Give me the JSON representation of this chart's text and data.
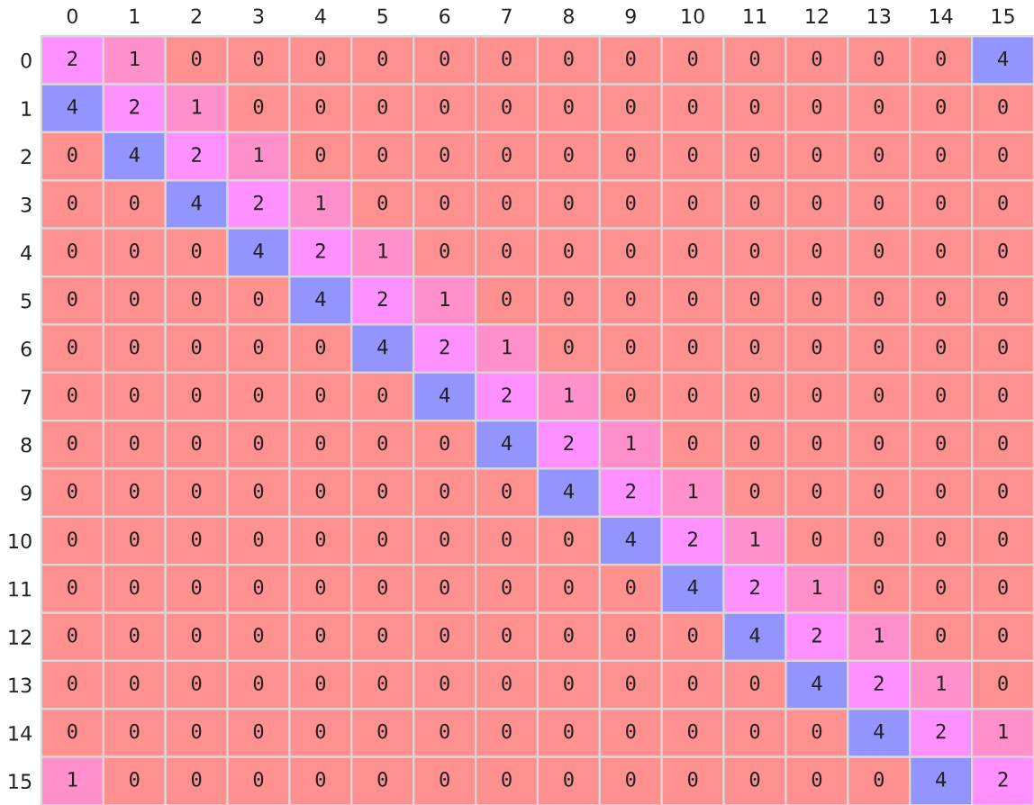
{
  "chart_data": {
    "type": "heatmap",
    "categories": [
      "0",
      "1",
      "2",
      "3",
      "4",
      "5",
      "6",
      "7",
      "8",
      "9",
      "10",
      "11",
      "12",
      "13",
      "14",
      "15"
    ],
    "y_categories": [
      "0",
      "1",
      "2",
      "3",
      "4",
      "5",
      "6",
      "7",
      "8",
      "9",
      "10",
      "11",
      "12",
      "13",
      "14",
      "15"
    ],
    "cells": [
      [
        2,
        1,
        0,
        0,
        0,
        0,
        0,
        0,
        0,
        0,
        0,
        0,
        0,
        0,
        0,
        4
      ],
      [
        4,
        2,
        1,
        0,
        0,
        0,
        0,
        0,
        0,
        0,
        0,
        0,
        0,
        0,
        0,
        0
      ],
      [
        0,
        4,
        2,
        1,
        0,
        0,
        0,
        0,
        0,
        0,
        0,
        0,
        0,
        0,
        0,
        0
      ],
      [
        0,
        0,
        4,
        2,
        1,
        0,
        0,
        0,
        0,
        0,
        0,
        0,
        0,
        0,
        0,
        0
      ],
      [
        0,
        0,
        0,
        4,
        2,
        1,
        0,
        0,
        0,
        0,
        0,
        0,
        0,
        0,
        0,
        0
      ],
      [
        0,
        0,
        0,
        0,
        4,
        2,
        1,
        0,
        0,
        0,
        0,
        0,
        0,
        0,
        0,
        0
      ],
      [
        0,
        0,
        0,
        0,
        0,
        4,
        2,
        1,
        0,
        0,
        0,
        0,
        0,
        0,
        0,
        0
      ],
      [
        0,
        0,
        0,
        0,
        0,
        0,
        4,
        2,
        1,
        0,
        0,
        0,
        0,
        0,
        0,
        0
      ],
      [
        0,
        0,
        0,
        0,
        0,
        0,
        0,
        4,
        2,
        1,
        0,
        0,
        0,
        0,
        0,
        0
      ],
      [
        0,
        0,
        0,
        0,
        0,
        0,
        0,
        0,
        4,
        2,
        1,
        0,
        0,
        0,
        0,
        0
      ],
      [
        0,
        0,
        0,
        0,
        0,
        0,
        0,
        0,
        0,
        4,
        2,
        1,
        0,
        0,
        0,
        0
      ],
      [
        0,
        0,
        0,
        0,
        0,
        0,
        0,
        0,
        0,
        0,
        4,
        2,
        1,
        0,
        0,
        0
      ],
      [
        0,
        0,
        0,
        0,
        0,
        0,
        0,
        0,
        0,
        0,
        0,
        4,
        2,
        1,
        0,
        0
      ],
      [
        0,
        0,
        0,
        0,
        0,
        0,
        0,
        0,
        0,
        0,
        0,
        0,
        4,
        2,
        1,
        0
      ],
      [
        0,
        0,
        0,
        0,
        0,
        0,
        0,
        0,
        0,
        0,
        0,
        0,
        0,
        4,
        2,
        1
      ],
      [
        1,
        0,
        0,
        0,
        0,
        0,
        0,
        0,
        0,
        0,
        0,
        0,
        0,
        0,
        4,
        2
      ]
    ],
    "data_labels": true
  }
}
